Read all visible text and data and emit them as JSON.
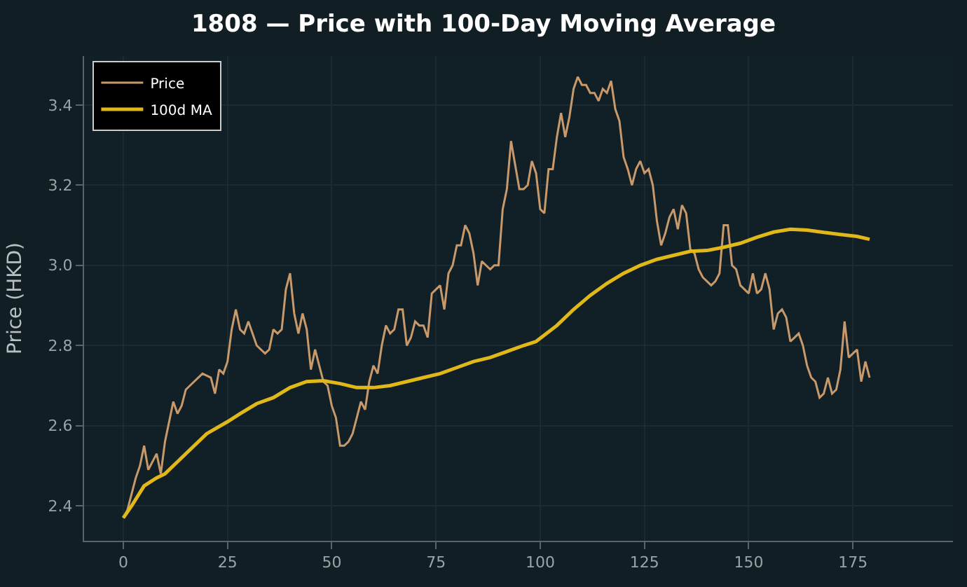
{
  "chart_data": {
    "type": "line",
    "title": "1808 — Price with 100-Day Moving Average",
    "ylabel": "Price (HKD)",
    "xlim": [
      -9.4,
      199
    ],
    "xticks": [
      0,
      25,
      50,
      75,
      100,
      125,
      150,
      175
    ],
    "ylim": [
      2.313,
      3.522
    ],
    "yticks": [
      {
        "value": 2.4,
        "label": "2.4"
      },
      {
        "value": 2.6,
        "label": "2.6"
      },
      {
        "value": 2.8,
        "label": "2.8"
      },
      {
        "value": 3.0,
        "label": "3.0"
      },
      {
        "value": 3.2,
        "label": "3.2"
      },
      {
        "value": 3.4,
        "label": "3.4"
      }
    ],
    "grid": true,
    "legend": "top left",
    "marker": "none",
    "line_style": "solid",
    "series": [
      {
        "name": "Price",
        "color": "#c8996a",
        "x": [
          0,
          1,
          3,
          4,
          5,
          6,
          8,
          9,
          10,
          12,
          13,
          14,
          15,
          17,
          19,
          21,
          22,
          23,
          24,
          25,
          26,
          27,
          28,
          29,
          30,
          31,
          32,
          34,
          35,
          36,
          37,
          38,
          39,
          40,
          41,
          42,
          43,
          44,
          45,
          46,
          47,
          48,
          49,
          50,
          51,
          52,
          53,
          54,
          55,
          56,
          57,
          58,
          59,
          60,
          61,
          62,
          63,
          64,
          65,
          66,
          67,
          68,
          69,
          70,
          71,
          72,
          73,
          74,
          75,
          76,
          77,
          78,
          79,
          80,
          81,
          82,
          83,
          84,
          85,
          86,
          87,
          88,
          89,
          90,
          91,
          92,
          93,
          94,
          95,
          96,
          97,
          98,
          99,
          100,
          101,
          102,
          103,
          104,
          105,
          106,
          107,
          108,
          109,
          110,
          111,
          112,
          113,
          114,
          115,
          116,
          117,
          118,
          119,
          120,
          121,
          122,
          123,
          124,
          125,
          126,
          127,
          128,
          129,
          130,
          131,
          132,
          133,
          134,
          135,
          136,
          137,
          138,
          139,
          140,
          141,
          142,
          143,
          144,
          145,
          146,
          147,
          148,
          149,
          150,
          151,
          152,
          153,
          154,
          155,
          156,
          157,
          158,
          159,
          160,
          161,
          162,
          163,
          164,
          165,
          166,
          167,
          168,
          169,
          170,
          171,
          172,
          173,
          174,
          175,
          176,
          177,
          178,
          179
        ],
        "values": [
          2.37,
          2.39,
          2.47,
          2.5,
          2.55,
          2.49,
          2.53,
          2.48,
          2.56,
          2.66,
          2.63,
          2.65,
          2.69,
          2.71,
          2.73,
          2.72,
          2.68,
          2.74,
          2.73,
          2.76,
          2.84,
          2.89,
          2.84,
          2.83,
          2.86,
          2.83,
          2.8,
          2.78,
          2.79,
          2.84,
          2.83,
          2.84,
          2.94,
          2.98,
          2.88,
          2.83,
          2.88,
          2.84,
          2.74,
          2.79,
          2.75,
          2.71,
          2.7,
          2.65,
          2.62,
          2.55,
          2.55,
          2.56,
          2.58,
          2.62,
          2.66,
          2.64,
          2.71,
          2.75,
          2.73,
          2.8,
          2.85,
          2.83,
          2.84,
          2.89,
          2.89,
          2.8,
          2.82,
          2.86,
          2.85,
          2.85,
          2.82,
          2.93,
          2.94,
          2.95,
          2.89,
          2.98,
          3.0,
          3.05,
          3.05,
          3.1,
          3.08,
          3.03,
          2.95,
          3.01,
          3.0,
          2.99,
          3.0,
          3.0,
          3.14,
          3.19,
          3.31,
          3.25,
          3.19,
          3.19,
          3.2,
          3.26,
          3.23,
          3.14,
          3.13,
          3.24,
          3.24,
          3.32,
          3.38,
          3.32,
          3.37,
          3.44,
          3.47,
          3.45,
          3.45,
          3.43,
          3.43,
          3.41,
          3.44,
          3.43,
          3.46,
          3.39,
          3.36,
          3.27,
          3.24,
          3.2,
          3.24,
          3.26,
          3.23,
          3.24,
          3.2,
          3.11,
          3.05,
          3.08,
          3.12,
          3.14,
          3.09,
          3.15,
          3.13,
          3.04,
          3.03,
          2.99,
          2.97,
          2.96,
          2.95,
          2.96,
          2.98,
          3.1,
          3.1,
          3.0,
          2.99,
          2.95,
          2.94,
          2.93,
          2.98,
          2.93,
          2.94,
          2.98,
          2.94,
          2.84,
          2.88,
          2.89,
          2.87,
          2.81,
          2.82,
          2.83,
          2.8,
          2.75,
          2.72,
          2.71,
          2.67,
          2.68,
          2.72,
          2.68,
          2.69,
          2.74,
          2.86,
          2.77,
          2.78,
          2.79,
          2.71,
          2.76,
          2.72
        ]
      },
      {
        "name": "100d MA",
        "color": "#e0b81a",
        "x": [
          0,
          2,
          5,
          8,
          10,
          15,
          20,
          25,
          28,
          32,
          36,
          40,
          44,
          48,
          52,
          56,
          60,
          64,
          68,
          72,
          76,
          80,
          84,
          88,
          92,
          96,
          99,
          104,
          108,
          112,
          116,
          120,
          124,
          128,
          132,
          136,
          140,
          144,
          148,
          152,
          156,
          160,
          164,
          168,
          172,
          176,
          179
        ],
        "values": [
          2.37,
          2.4,
          2.45,
          2.47,
          2.48,
          2.53,
          2.58,
          2.61,
          2.63,
          2.655,
          2.67,
          2.695,
          2.71,
          2.712,
          2.705,
          2.695,
          2.695,
          2.7,
          2.71,
          2.72,
          2.73,
          2.745,
          2.76,
          2.77,
          2.785,
          2.8,
          2.81,
          2.85,
          2.89,
          2.925,
          2.955,
          2.98,
          3.0,
          3.015,
          3.025,
          3.035,
          3.037,
          3.045,
          3.055,
          3.07,
          3.083,
          3.09,
          3.088,
          3.082,
          3.077,
          3.072,
          3.065
        ]
      }
    ]
  }
}
